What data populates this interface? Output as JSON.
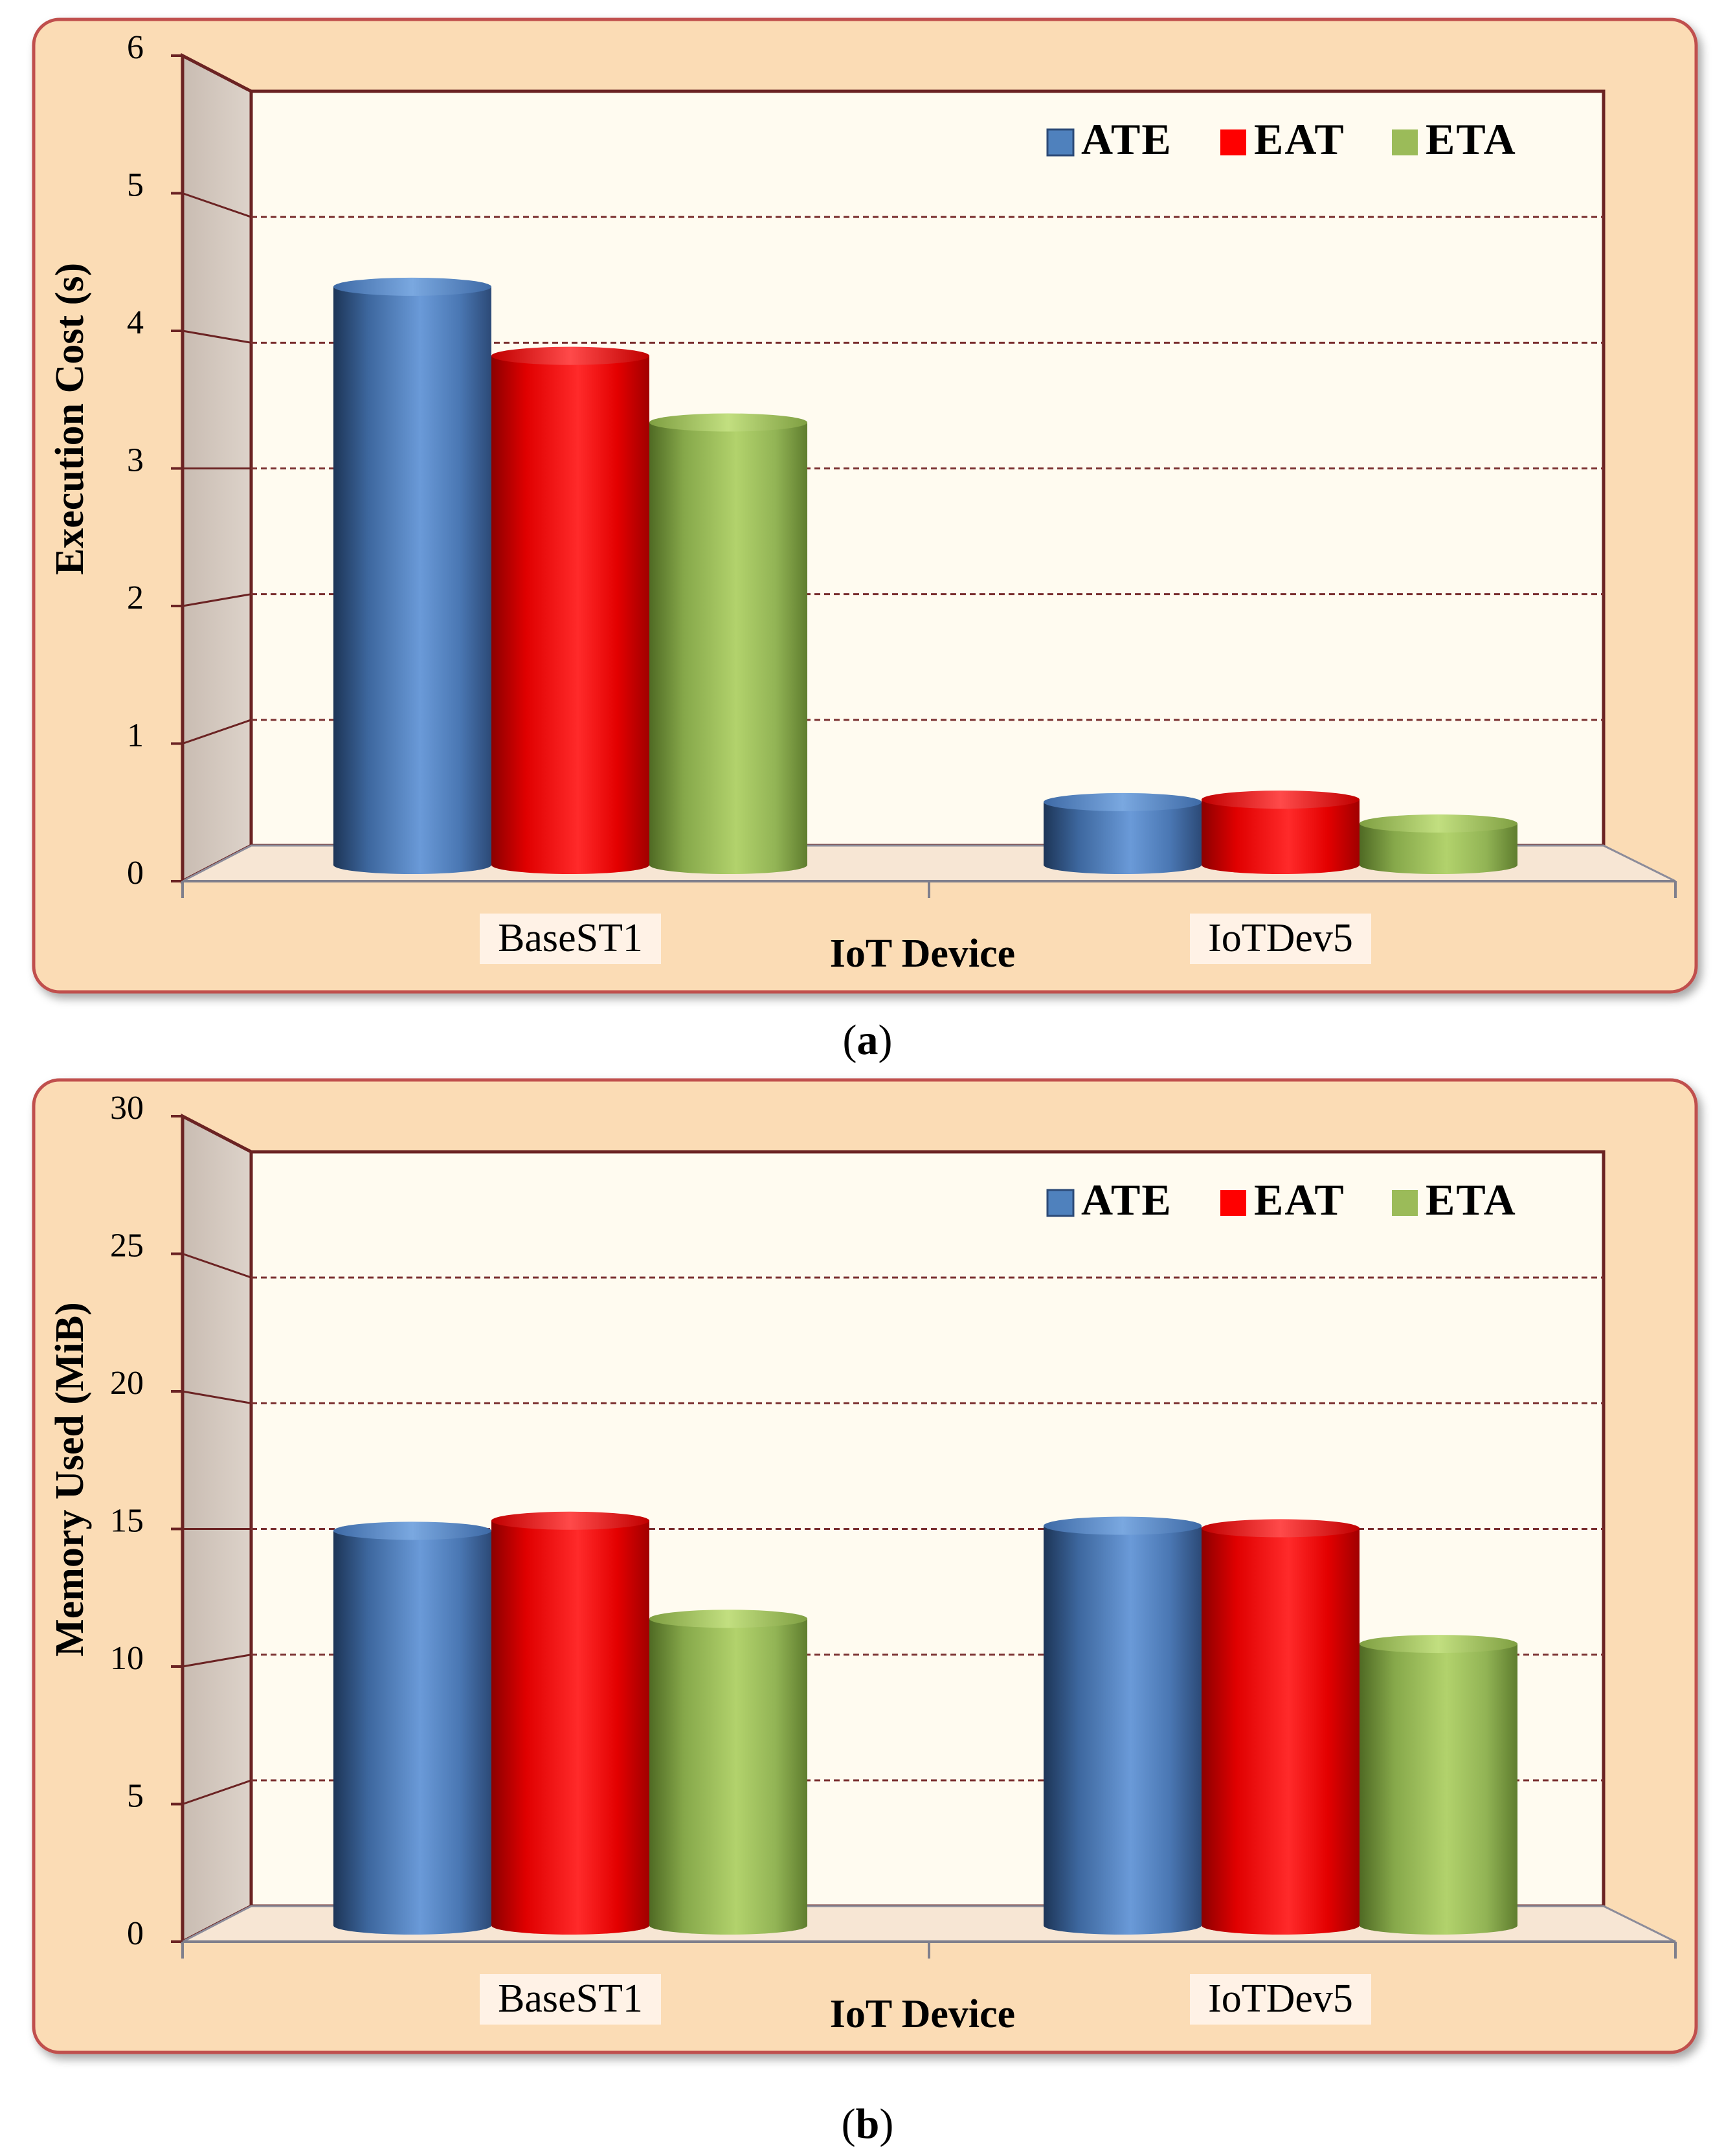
{
  "palette": {
    "series": [
      "#4f81bd",
      "#ff0000",
      "#9bbb59"
    ],
    "panel_bg": "#fbdcb5",
    "panel_border": "#c0504d",
    "plot_bg": "#fffbf0",
    "axis": "#6b2323",
    "grid": "#7a2f2f"
  },
  "chart_data": [
    {
      "type": "bar",
      "panel_label": "(a)",
      "panel_letter": "a",
      "categories": [
        "BaseST1",
        "IoTDev5"
      ],
      "series": [
        {
          "name": "ATE",
          "values": [
            4.6,
            0.5
          ]
        },
        {
          "name": "EAT",
          "values": [
            4.05,
            0.52
          ]
        },
        {
          "name": "ETA",
          "values": [
            3.52,
            0.33
          ]
        }
      ],
      "xlabel": "IoT Device",
      "ylabel": "Execution Cost (s)",
      "ylim": [
        0,
        6
      ],
      "yticks": [
        "0",
        "1",
        "2",
        "3",
        "4",
        "5",
        "6"
      ],
      "grid": true,
      "legend_position": "top-right"
    },
    {
      "type": "bar",
      "panel_label": "(b)",
      "panel_letter": "b",
      "categories": [
        "BaseST1",
        "IoTDev5"
      ],
      "series": [
        {
          "name": "ATE",
          "values": [
            15.7,
            15.9
          ]
        },
        {
          "name": "EAT",
          "values": [
            16.1,
            15.8
          ]
        },
        {
          "name": "ETA",
          "values": [
            12.2,
            11.2
          ]
        }
      ],
      "xlabel": "IoT Device",
      "ylabel": "Memory Used (MiB)",
      "ylim": [
        0,
        30
      ],
      "yticks": [
        "0",
        "5",
        "10",
        "15",
        "20",
        "25",
        "30"
      ],
      "grid": true,
      "legend_position": "top-right"
    }
  ]
}
